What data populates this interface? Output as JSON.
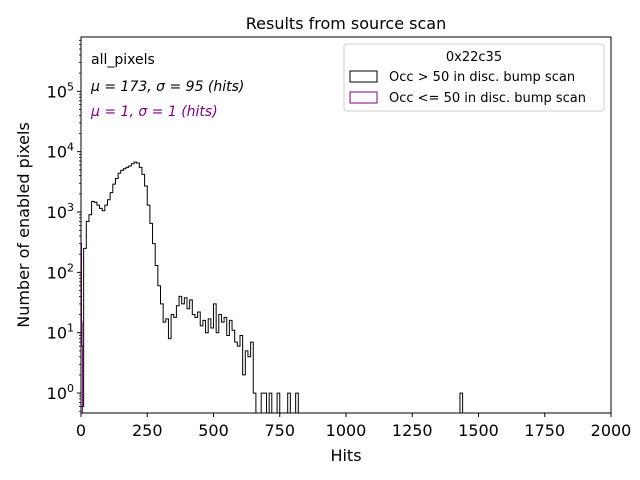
{
  "chart_data": {
    "type": "histogram",
    "title": "Results from source scan",
    "xlabel": "Hits",
    "ylabel": "Number of enabled pixels",
    "xlim": [
      0,
      2000
    ],
    "ylim_log10": [
      -0.33,
      5.9
    ],
    "x_ticks": [
      0,
      250,
      500,
      750,
      1000,
      1250,
      1500,
      1750,
      2000
    ],
    "y_ticks": [
      {
        "label": "10",
        "exp": "0",
        "value": 1
      },
      {
        "label": "10",
        "exp": "1",
        "value": 10
      },
      {
        "label": "10",
        "exp": "2",
        "value": 100
      },
      {
        "label": "10",
        "exp": "3",
        "value": 1000
      },
      {
        "label": "10",
        "exp": "4",
        "value": 10000
      },
      {
        "label": "10",
        "exp": "5",
        "value": 100000
      }
    ],
    "annotations": {
      "name": "all_pixels",
      "stats_black": "μ = 173, σ = 95 (hits)",
      "stats_purple": "μ = 1, σ = 1 (hits)"
    },
    "legend": {
      "title": "0x22c35",
      "placement": "top-right",
      "entries": [
        {
          "label": "Occ > 50 in disc. bump scan",
          "color": "#000000"
        },
        {
          "label": "Occ <= 50 in disc. bump scan",
          "color": "#800080"
        }
      ]
    },
    "bin_width": 10,
    "series": [
      {
        "name": "Occ > 50 in disc. bump scan",
        "color": "#000000",
        "bins": [
          [
            0,
            0.6
          ],
          [
            10,
            250
          ],
          [
            20,
            700
          ],
          [
            30,
            900
          ],
          [
            40,
            1500
          ],
          [
            50,
            1450
          ],
          [
            60,
            1300
          ],
          [
            70,
            1150
          ],
          [
            80,
            1050
          ],
          [
            90,
            1300
          ],
          [
            100,
            1600
          ],
          [
            110,
            2100
          ],
          [
            120,
            2900
          ],
          [
            130,
            3600
          ],
          [
            140,
            4400
          ],
          [
            150,
            4900
          ],
          [
            160,
            5200
          ],
          [
            170,
            5500
          ],
          [
            180,
            5800
          ],
          [
            190,
            6300
          ],
          [
            200,
            6700
          ],
          [
            210,
            6500
          ],
          [
            220,
            5500
          ],
          [
            230,
            4200
          ],
          [
            240,
            2700
          ],
          [
            250,
            1300
          ],
          [
            260,
            650
          ],
          [
            270,
            300
          ],
          [
            280,
            130
          ],
          [
            290,
            60
          ],
          [
            300,
            30
          ],
          [
            310,
            15
          ],
          [
            320,
            17
          ],
          [
            330,
            8
          ],
          [
            340,
            20
          ],
          [
            350,
            18
          ],
          [
            360,
            28
          ],
          [
            370,
            40
          ],
          [
            380,
            30
          ],
          [
            390,
            38
          ],
          [
            400,
            25
          ],
          [
            410,
            35
          ],
          [
            420,
            20
          ],
          [
            430,
            18
          ],
          [
            440,
            22
          ],
          [
            450,
            13
          ],
          [
            460,
            16
          ],
          [
            470,
            10
          ],
          [
            480,
            17
          ],
          [
            490,
            12
          ],
          [
            500,
            30
          ],
          [
            510,
            10
          ],
          [
            520,
            20
          ],
          [
            530,
            15
          ],
          [
            540,
            18
          ],
          [
            550,
            9
          ],
          [
            560,
            16
          ],
          [
            570,
            11
          ],
          [
            580,
            7
          ],
          [
            590,
            6
          ],
          [
            600,
            9
          ],
          [
            610,
            2
          ],
          [
            620,
            5
          ],
          [
            630,
            4
          ],
          [
            640,
            7
          ],
          [
            650,
            1
          ],
          [
            660,
            0
          ],
          [
            670,
            0
          ],
          [
            680,
            1
          ],
          [
            690,
            1
          ],
          [
            700,
            0
          ],
          [
            710,
            1
          ],
          [
            720,
            0
          ],
          [
            730,
            0
          ],
          [
            740,
            1
          ],
          [
            750,
            0
          ],
          [
            760,
            0
          ],
          [
            770,
            0
          ],
          [
            780,
            1
          ],
          [
            790,
            0
          ],
          [
            800,
            0
          ],
          [
            810,
            1
          ],
          [
            820,
            0
          ],
          [
            1430,
            1
          ],
          [
            1440,
            0
          ]
        ]
      },
      {
        "name": "Occ <= 50 in disc. bump scan",
        "color": "#800080",
        "bins": [
          [
            0,
            300
          ],
          [
            2,
            15
          ],
          [
            4,
            6
          ],
          [
            6,
            0
          ]
        ]
      }
    ]
  }
}
